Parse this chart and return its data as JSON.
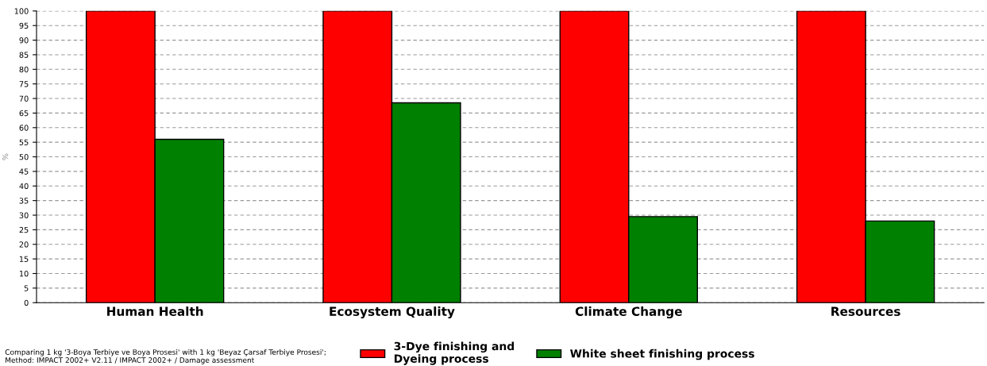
{
  "chart_data": {
    "type": "bar",
    "ylabel": "%",
    "categories": [
      "Human Health",
      "Ecosystem Quality",
      "Climate Change",
      "Resources"
    ],
    "series": [
      {
        "name": "3-Dye finishing and\nDyeing process",
        "color": "#ff0000",
        "values": [
          100,
          100,
          100,
          100
        ]
      },
      {
        "name": "White sheet finishing process",
        "color": "#008000",
        "values": [
          56,
          68.5,
          29.5,
          28
        ]
      }
    ],
    "ylim": [
      0,
      100
    ],
    "yticks": [
      0,
      5,
      10,
      15,
      20,
      25,
      30,
      35,
      40,
      45,
      50,
      55,
      60,
      65,
      70,
      75,
      80,
      85,
      90,
      95,
      100
    ],
    "grid": "y",
    "legend": "bottom",
    "annotations": [
      "Comparing 1 kg '3-Boya Terbiye ve Boya Prosesi' with 1 kg 'Beyaz Çarsaf Terbiye Prosesi';\nMethod: IMPACT 2002+ V2.11 / IMPACT 2002+ / Damage assessment"
    ]
  }
}
